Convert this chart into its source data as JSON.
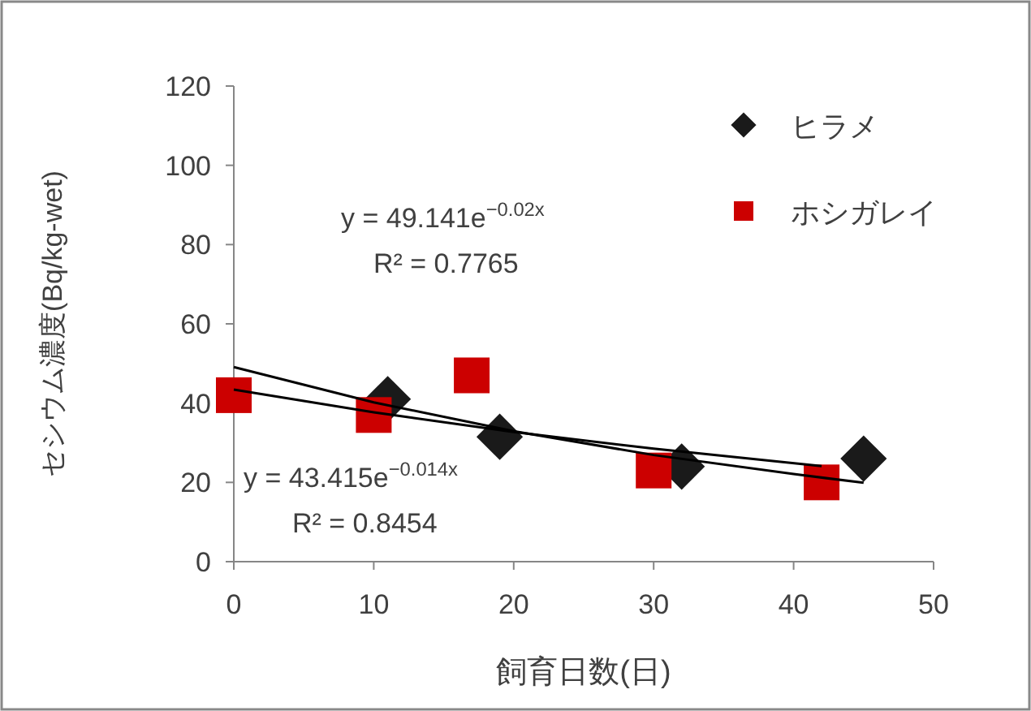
{
  "chart_data": {
    "type": "scatter",
    "ylabel": "セシウム濃度(Bq/kg-wet)",
    "xlabel": "飼育日数(日)",
    "xlim": [
      0,
      50
    ],
    "xticks": [
      0,
      10,
      20,
      30,
      40,
      50
    ],
    "ylim": [
      0,
      120
    ],
    "yticks": [
      0,
      20,
      40,
      60,
      80,
      100,
      120
    ],
    "grid": false,
    "legend": "top right",
    "series": [
      {
        "name": "ヒラメ",
        "type": "scatter",
        "marker": "diamond",
        "color": "#1a1a1a",
        "x": [
          11,
          19,
          32,
          45
        ],
        "values": [
          41,
          31.5,
          24,
          26
        ]
      },
      {
        "name": "ホシガレイ",
        "type": "scatter",
        "marker": "square",
        "color": "#cc0000",
        "x": [
          0,
          10,
          17,
          30,
          42
        ],
        "values": [
          42,
          37,
          47,
          23,
          20
        ]
      },
      {
        "type": "line",
        "marker": "none",
        "color": "#000000",
        "x": [
          0,
          10,
          20,
          30,
          40,
          45
        ],
        "values": [
          49.1,
          40.2,
          32.9,
          26.9,
          22.1,
          19.9
        ]
      },
      {
        "type": "line",
        "marker": "none",
        "color": "#000000",
        "x": [
          0,
          10,
          20,
          30,
          42
        ],
        "values": [
          43.4,
          37.7,
          32.7,
          28.5,
          24.1
        ]
      }
    ],
    "annotations": [
      "y = 49.141e$^{−0.02x}$",
      "R² = 0.7765",
      "y = 43.415e$^{−0.014x}$",
      "R² = 0.8454"
    ]
  }
}
